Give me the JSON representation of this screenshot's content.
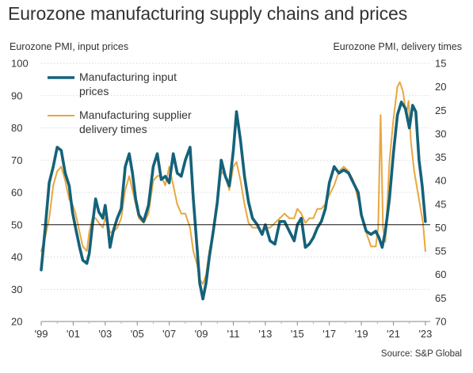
{
  "title": "Eurozone manufacturing supply chains and prices",
  "source": "Source: S&P Global",
  "chart_data": {
    "type": "line",
    "title": "Eurozone manufacturing supply chains and prices",
    "left_axis_label": "Eurozone PMI, input prices",
    "right_axis_label": "Eurozone PMI, delivery times",
    "ylim_left": [
      20,
      100
    ],
    "yticks_left": [
      "100",
      "90",
      "80",
      "70",
      "60",
      "50",
      "40",
      "30",
      "20"
    ],
    "ylim_right_inverted": [
      15,
      70
    ],
    "yticks_right": [
      "15",
      "20",
      "25",
      "30",
      "35",
      "40",
      "45",
      "50",
      "55",
      "60",
      "65",
      "70"
    ],
    "xlim": [
      1999,
      2023.3
    ],
    "xticks": [
      "'99",
      "'01",
      "'03",
      "'05",
      "'07",
      "'09",
      "'11",
      "'13",
      "'15",
      "'17",
      "'19",
      "'21",
      "'23"
    ],
    "reference_line_left": 50,
    "grid": "horizontal dotted",
    "legend_position": "top-left",
    "series": [
      {
        "name": "Manufacturing input prices",
        "axis": "left",
        "color": "#14627a",
        "x": [
          1999.0,
          1999.25,
          1999.5,
          1999.75,
          2000.0,
          2000.25,
          2000.5,
          2000.75,
          2000.95,
          2001.15,
          2001.4,
          2001.6,
          2001.85,
          2002.0,
          2002.2,
          2002.4,
          2002.6,
          2002.85,
          2003.0,
          2003.15,
          2003.3,
          2003.5,
          2003.75,
          2004.0,
          2004.25,
          2004.5,
          2004.7,
          2004.9,
          2005.1,
          2005.4,
          2005.7,
          2006.0,
          2006.25,
          2006.5,
          2006.75,
          2007.0,
          2007.25,
          2007.5,
          2007.75,
          2008.0,
          2008.3,
          2008.5,
          2008.75,
          2008.9,
          2009.1,
          2009.3,
          2009.5,
          2009.75,
          2010.0,
          2010.25,
          2010.5,
          2010.75,
          2011.0,
          2011.2,
          2011.45,
          2011.7,
          2011.95,
          2012.2,
          2012.5,
          2012.8,
          2013.0,
          2013.3,
          2013.6,
          2013.9,
          2014.2,
          2014.5,
          2014.8,
          2015.0,
          2015.25,
          2015.5,
          2015.75,
          2016.0,
          2016.25,
          2016.5,
          2016.75,
          2017.0,
          2017.3,
          2017.6,
          2017.9,
          2018.2,
          2018.5,
          2018.8,
          2019.0,
          2019.3,
          2019.6,
          2019.9,
          2020.1,
          2020.3,
          2020.5,
          2020.75,
          2021.0,
          2021.25,
          2021.5,
          2021.75,
          2022.0,
          2022.2,
          2022.4,
          2022.6,
          2022.8,
          2023.0
        ],
        "values": [
          36,
          49,
          63,
          68,
          74,
          73,
          66,
          62,
          54,
          49,
          43,
          39,
          38,
          41,
          50,
          58,
          54,
          52,
          56,
          50,
          43,
          48,
          52,
          55,
          68,
          72,
          66,
          58,
          53,
          51,
          56,
          68,
          72,
          64,
          65,
          63,
          72,
          66,
          65,
          70,
          74,
          58,
          42,
          32,
          27,
          32,
          40,
          48,
          57,
          70,
          65,
          62,
          73,
          85,
          76,
          65,
          57,
          52,
          50,
          47,
          50,
          45,
          44,
          51,
          51,
          48,
          45,
          50,
          52,
          43,
          44,
          46,
          49,
          51,
          55,
          63,
          68,
          66,
          67,
          66,
          63,
          60,
          53,
          48,
          47,
          48,
          46,
          43,
          48,
          58,
          72,
          84,
          88,
          86,
          80,
          87,
          85,
          70,
          62,
          51
        ]
      },
      {
        "name": "Manufacturing supplier delivery times",
        "axis": "right",
        "color": "#e8a73f",
        "x": [
          1999.0,
          1999.25,
          1999.5,
          1999.75,
          2000.0,
          2000.25,
          2000.5,
          2000.75,
          2000.95,
          2001.15,
          2001.4,
          2001.6,
          2001.85,
          2002.0,
          2002.2,
          2002.4,
          2002.6,
          2002.85,
          2003.0,
          2003.15,
          2003.3,
          2003.5,
          2003.75,
          2004.0,
          2004.25,
          2004.5,
          2004.7,
          2004.9,
          2005.1,
          2005.4,
          2005.7,
          2006.0,
          2006.25,
          2006.5,
          2006.75,
          2007.0,
          2007.25,
          2007.5,
          2007.75,
          2008.0,
          2008.3,
          2008.5,
          2008.75,
          2008.9,
          2009.1,
          2009.3,
          2009.5,
          2009.75,
          2010.0,
          2010.25,
          2010.5,
          2010.75,
          2011.0,
          2011.2,
          2011.45,
          2011.7,
          2011.95,
          2012.2,
          2012.5,
          2012.8,
          2013.0,
          2013.3,
          2013.6,
          2013.9,
          2014.2,
          2014.5,
          2014.8,
          2015.0,
          2015.25,
          2015.5,
          2015.75,
          2016.0,
          2016.25,
          2016.5,
          2016.75,
          2017.0,
          2017.3,
          2017.6,
          2017.9,
          2018.2,
          2018.5,
          2018.8,
          2019.0,
          2019.3,
          2019.6,
          2019.9,
          2020.05,
          2020.2,
          2020.35,
          2020.5,
          2020.75,
          2021.0,
          2021.25,
          2021.4,
          2021.6,
          2021.8,
          2021.95,
          2022.1,
          2022.3,
          2022.6,
          2022.85,
          2023.0
        ],
        "values": [
          55,
          52,
          48,
          41,
          38,
          37,
          40,
          44,
          45,
          47,
          51,
          54,
          55,
          51,
          48,
          48,
          49,
          50,
          48,
          49,
          51,
          51,
          50,
          48,
          42,
          39,
          42,
          45,
          48,
          49,
          47,
          40,
          39,
          39,
          41,
          37,
          41,
          45,
          47,
          47,
          50,
          55,
          58,
          61,
          62,
          60,
          55,
          51,
          45,
          38,
          39,
          42,
          37,
          36,
          40,
          45,
          49,
          50,
          50,
          51,
          50,
          50,
          49,
          48,
          47,
          48,
          48,
          46,
          47,
          49,
          48,
          48,
          46,
          46,
          45,
          43,
          41,
          38,
          37,
          38,
          40,
          44,
          47,
          51,
          54,
          54,
          50,
          26,
          50,
          53,
          36,
          27,
          20,
          19,
          21,
          26,
          23,
          32,
          38,
          44,
          49,
          55
        ]
      }
    ]
  }
}
